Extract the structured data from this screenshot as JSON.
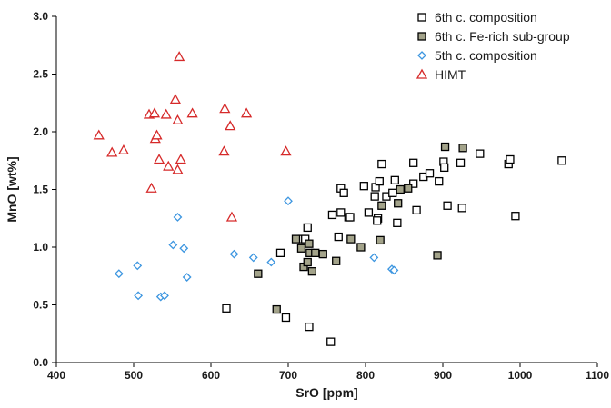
{
  "chart_data": {
    "type": "scatter",
    "title": "",
    "xlabel": "SrO [ppm]",
    "ylabel": "MnO [wt%]",
    "xlim": [
      400,
      1100
    ],
    "ylim": [
      0.0,
      3.0
    ],
    "xticks": [
      400,
      500,
      600,
      700,
      800,
      900,
      1000,
      1100
    ],
    "yticks": [
      "0.0",
      "0.5",
      "1.0",
      "1.5",
      "2.0",
      "2.5",
      "3.0"
    ],
    "grid": false,
    "legend_position": "top-right",
    "series": [
      {
        "name": "6th c. composition",
        "marker": "square",
        "fill": "#ffffff",
        "stroke": "#000000",
        "points": [
          [
            620,
            0.47
          ],
          [
            690,
            0.95
          ],
          [
            697,
            0.39
          ],
          [
            727,
            0.31
          ],
          [
            755,
            0.18
          ],
          [
            718,
            1.07
          ],
          [
            722,
            1.07
          ],
          [
            725,
            1.17
          ],
          [
            757,
            1.28
          ],
          [
            765,
            1.09
          ],
          [
            768,
            1.51
          ],
          [
            772,
            1.47
          ],
          [
            768,
            1.3
          ],
          [
            778,
            1.26
          ],
          [
            780,
            1.26
          ],
          [
            798,
            1.53
          ],
          [
            804,
            1.3
          ],
          [
            812,
            1.44
          ],
          [
            813,
            1.52
          ],
          [
            816,
            1.25
          ],
          [
            815,
            1.23
          ],
          [
            818,
            1.57
          ],
          [
            821,
            1.72
          ],
          [
            827,
            1.44
          ],
          [
            835,
            1.47
          ],
          [
            838,
            1.58
          ],
          [
            841,
            1.21
          ],
          [
            862,
            1.73
          ],
          [
            866,
            1.32
          ],
          [
            862,
            1.55
          ],
          [
            875,
            1.61
          ],
          [
            883,
            1.64
          ],
          [
            895,
            1.57
          ],
          [
            901,
            1.74
          ],
          [
            902,
            1.69
          ],
          [
            906,
            1.36
          ],
          [
            923,
            1.73
          ],
          [
            925,
            1.34
          ],
          [
            948,
            1.81
          ],
          [
            985,
            1.72
          ],
          [
            987,
            1.76
          ],
          [
            994,
            1.27
          ],
          [
            1054,
            1.75
          ]
        ]
      },
      {
        "name": "6th c. Fe-rich sub-group",
        "marker": "square",
        "fill": "#a3a38a",
        "stroke": "#000000",
        "points": [
          [
            661,
            0.77
          ],
          [
            685,
            0.46
          ],
          [
            710,
            1.07
          ],
          [
            717,
            0.99
          ],
          [
            720,
            0.83
          ],
          [
            725,
            0.87
          ],
          [
            727,
            1.03
          ],
          [
            728,
            0.95
          ],
          [
            731,
            0.79
          ],
          [
            735,
            0.95
          ],
          [
            745,
            0.94
          ],
          [
            762,
            0.88
          ],
          [
            781,
            1.07
          ],
          [
            794,
            1.0
          ],
          [
            819,
            1.06
          ],
          [
            821,
            1.36
          ],
          [
            842,
            1.38
          ],
          [
            845,
            1.5
          ],
          [
            855,
            1.51
          ],
          [
            893,
            0.93
          ],
          [
            903,
            1.87
          ],
          [
            926,
            1.86
          ]
        ]
      },
      {
        "name": "5th c. composition",
        "marker": "diamond",
        "fill": "#ffffff",
        "stroke": "#3d96e0",
        "points": [
          [
            481,
            0.77
          ],
          [
            505,
            0.84
          ],
          [
            506,
            0.58
          ],
          [
            535,
            0.57
          ],
          [
            540,
            0.58
          ],
          [
            551,
            1.02
          ],
          [
            557,
            1.26
          ],
          [
            565,
            0.99
          ],
          [
            569,
            0.74
          ],
          [
            630,
            0.94
          ],
          [
            655,
            0.91
          ],
          [
            678,
            0.87
          ],
          [
            700,
            1.4
          ],
          [
            811,
            0.91
          ],
          [
            834,
            0.81
          ],
          [
            837,
            0.8
          ]
        ]
      },
      {
        "name": "HIMT",
        "marker": "triangle",
        "fill": "#ffffff",
        "stroke": "#d62a2a",
        "points": [
          [
            455,
            1.97
          ],
          [
            472,
            1.82
          ],
          [
            487,
            1.84
          ],
          [
            520,
            2.15
          ],
          [
            523,
            1.51
          ],
          [
            527,
            2.16
          ],
          [
            528,
            1.94
          ],
          [
            530,
            1.97
          ],
          [
            533,
            1.76
          ],
          [
            542,
            2.15
          ],
          [
            545,
            1.7
          ],
          [
            554,
            2.28
          ],
          [
            557,
            2.1
          ],
          [
            557,
            1.67
          ],
          [
            559,
            2.65
          ],
          [
            561,
            1.76
          ],
          [
            576,
            2.16
          ],
          [
            617,
            1.83
          ],
          [
            618,
            2.2
          ],
          [
            625,
            2.05
          ],
          [
            627,
            1.26
          ],
          [
            646,
            2.16
          ],
          [
            697,
            1.83
          ]
        ]
      }
    ]
  }
}
